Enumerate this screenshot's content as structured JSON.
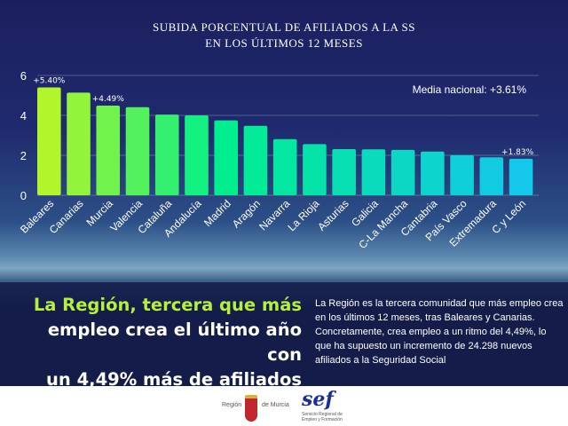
{
  "title_lines": [
    "SUBIDA PORCENTUAL DE AFILIADOS A LA SS",
    "EN LOS ÚLTIMOS 12 MESES"
  ],
  "chart_data": {
    "type": "bar",
    "title": "SUBIDA PORCENTUAL DE AFILIADOS A LA SS EN LOS ÚLTIMOS 12 MESES",
    "categories": [
      "Baleares",
      "Canarias",
      "Murcia",
      "Valencia",
      "Cataluña",
      "Andalucía",
      "Madrid",
      "Aragón",
      "Navarra",
      "La Rioja",
      "Asturias",
      "Galicia",
      "C-La Mancha",
      "Cantabria",
      "País Vasco",
      "Extremadura",
      "C y León"
    ],
    "values": [
      5.4,
      5.14,
      4.49,
      4.41,
      4.04,
      4.0,
      3.75,
      3.48,
      2.81,
      2.56,
      2.31,
      2.3,
      2.27,
      2.19,
      2.01,
      1.9,
      1.83
    ],
    "data_labels": {
      "0": "+5.40%",
      "2": "+4.49%",
      "16": "+1.83%"
    },
    "annotation": "Media nacional: +3.61%",
    "yticks": [
      "0",
      "2",
      "4",
      "6"
    ],
    "ylim": [
      0,
      6
    ],
    "grid": true,
    "colors": {
      "start": "#b2f52a",
      "mid": "#00f08a",
      "end": "#13c8ea"
    }
  },
  "headline": {
    "pre": "",
    "highlight": "La Región, tercera que más",
    "rest1": "empleo crea el último año con",
    "rest2": "un 4,49% más de afiliados"
  },
  "body_text": "La Región es la tercera comunidad que más empleo crea en los últimos 12 meses, tras Baleares y Canarias. Concretamente, crea empleo a un ritmo del 4,49%, lo que ha supuesto un incremento de 24.298 nuevos afiliados a la Seguridad Social",
  "footer": {
    "logo1_left": "Región",
    "logo1_right": "de Murcia",
    "logo2_mark": "sef",
    "logo2_line1": "Servicio Regional de",
    "logo2_line2": "Empleo y Formación"
  }
}
